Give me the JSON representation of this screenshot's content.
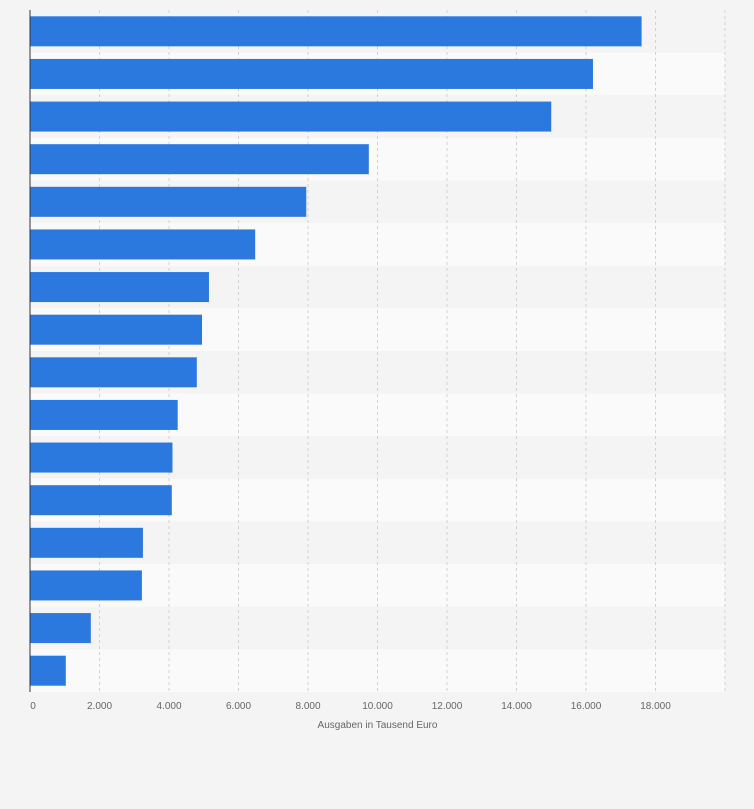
{
  "chart_data": {
    "type": "bar",
    "orientation": "horizontal",
    "values": [
      17600,
      16200,
      15000,
      9750,
      7950,
      6480,
      5150,
      4950,
      4800,
      4250,
      4100,
      4080,
      3250,
      3220,
      1750,
      1030
    ],
    "xlabel": "Ausgaben in Tausend Euro",
    "xlim": [
      0,
      20000
    ],
    "xticks": [
      0,
      2000,
      4000,
      6000,
      8000,
      10000,
      12000,
      14000,
      16000,
      18000
    ],
    "xtick_labels": [
      "0",
      "2.000",
      "4.000",
      "6.000",
      "8.000",
      "10.000",
      "12.000",
      "14.000",
      "16.000",
      "18.000"
    ],
    "grid": "vertical dashed",
    "legend": "none",
    "bar_color": "#2b78de",
    "band_colors": [
      "#f4f4f4",
      "#fafafa"
    ]
  }
}
